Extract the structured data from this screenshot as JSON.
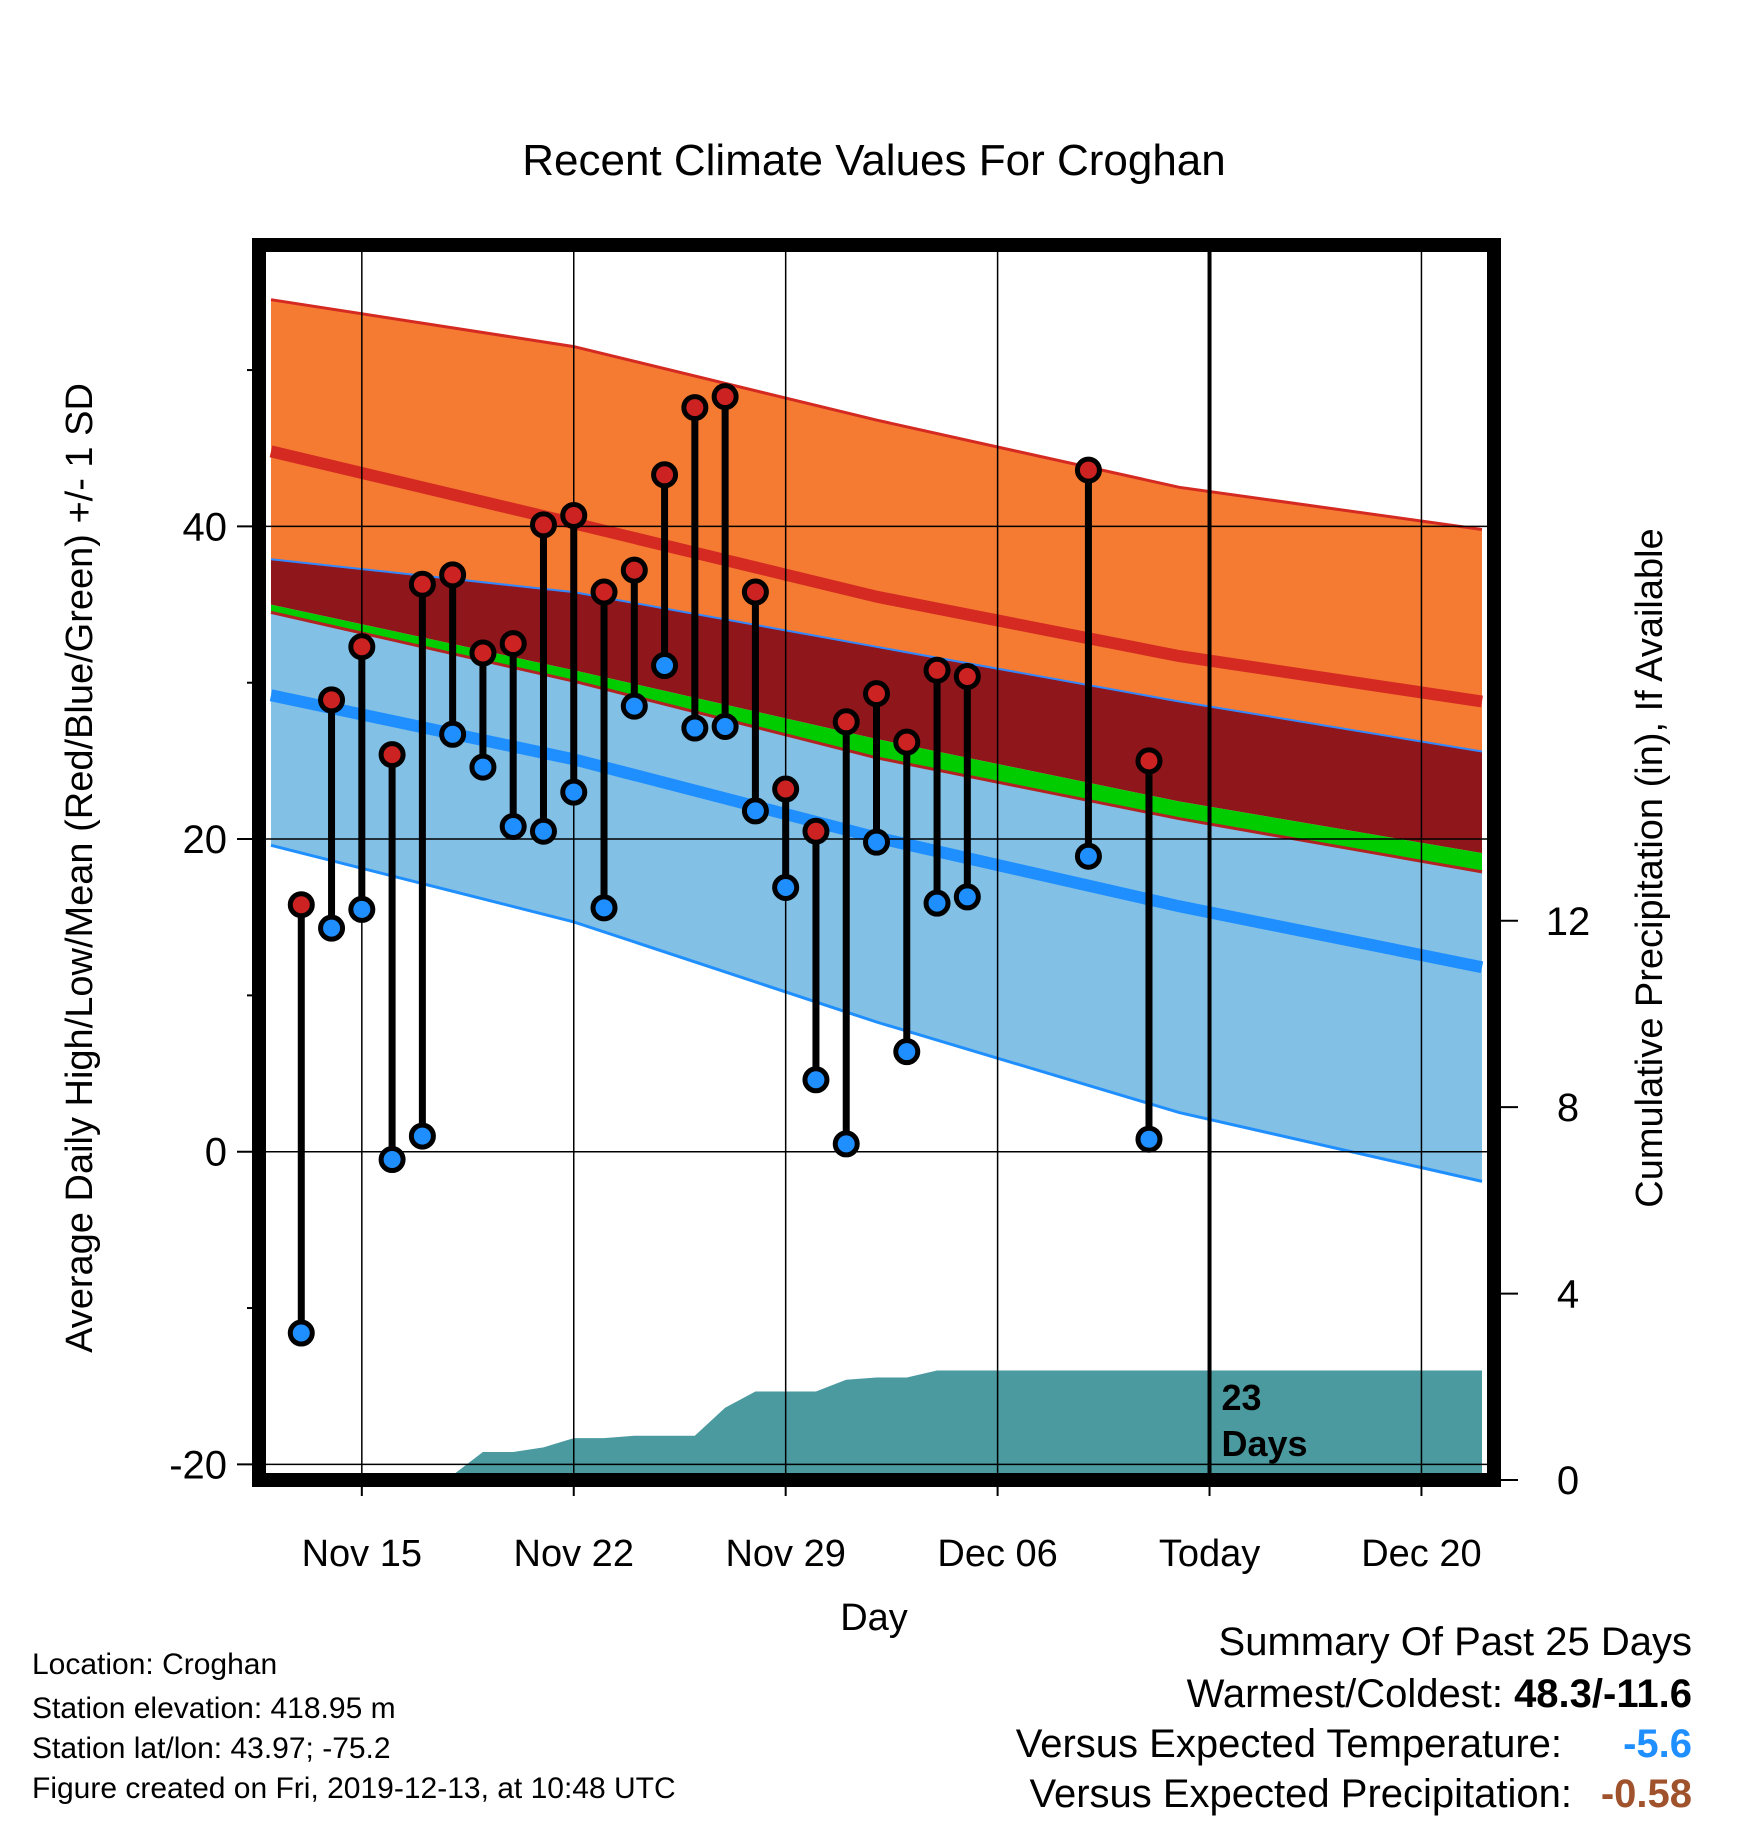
{
  "chart_data": {
    "type": "line",
    "title": "Recent Climate Values For Croghan",
    "xlabel": "Day",
    "ylabel": "Average Daily High/Low/Mean (Red/Blue/Green) +/- 1 SD",
    "y2label": "Cumulative Precipitation (in), If Available",
    "ylim": [
      -21,
      58
    ],
    "y2lim": [
      0,
      26.5
    ],
    "x_tick_labels": [
      "Nov 15",
      "Nov 22",
      "Nov 29",
      "Dec 06",
      "Today",
      "Dec 20"
    ],
    "y_tick_labels": [
      "-20",
      "0",
      "20",
      "40"
    ],
    "y2_tick_labels": [
      "0",
      "4",
      "8",
      "12"
    ],
    "today_annotation": [
      "23",
      "Days"
    ],
    "series": [
      {
        "name": "Observed High",
        "color": "#cc2222",
        "x": [
          "Nov 13",
          "Nov 14",
          "Nov 15",
          "Nov 16",
          "Nov 17",
          "Nov 18",
          "Nov 19",
          "Nov 20",
          "Nov 21",
          "Nov 22",
          "Nov 23",
          "Nov 24",
          "Nov 25",
          "Nov 26",
          "Nov 27",
          "Nov 28",
          "Nov 29",
          "Nov 30",
          "Dec 01",
          "Dec 02",
          "Dec 03",
          "Dec 04",
          "Dec 05",
          "Dec 09",
          "Dec 11"
        ],
        "values": [
          15.8,
          28.9,
          32.3,
          25.4,
          36.3,
          36.9,
          31.9,
          32.5,
          40.1,
          40.7,
          35.8,
          37.2,
          43.3,
          47.6,
          48.3,
          35.8,
          23.2,
          20.5,
          27.5,
          29.3,
          26.2,
          30.8,
          30.4,
          43.6,
          25.0
        ]
      },
      {
        "name": "Observed Low",
        "color": "#1f8fff",
        "x": [
          "Nov 13",
          "Nov 14",
          "Nov 15",
          "Nov 16",
          "Nov 17",
          "Nov 18",
          "Nov 19",
          "Nov 20",
          "Nov 21",
          "Nov 22",
          "Nov 23",
          "Nov 24",
          "Nov 25",
          "Nov 26",
          "Nov 27",
          "Nov 28",
          "Nov 29",
          "Nov 30",
          "Dec 01",
          "Dec 02",
          "Dec 03",
          "Dec 04",
          "Dec 05",
          "Dec 09",
          "Dec 11"
        ],
        "values": [
          -11.6,
          14.3,
          15.5,
          -0.5,
          1.0,
          26.7,
          24.6,
          20.8,
          20.5,
          23.0,
          15.6,
          28.5,
          31.1,
          27.1,
          27.2,
          21.8,
          16.9,
          4.6,
          0.5,
          19.8,
          6.4,
          15.9,
          16.3,
          18.9,
          0.8
        ]
      },
      {
        "name": "Normal High",
        "color": "#cc2222",
        "x": [
          "Nov 12",
          "Nov 22",
          "Dec 02",
          "Dec 12",
          "Dec 22"
        ],
        "values": [
          44.8,
          40.2,
          35.5,
          31.7,
          28.8
        ]
      },
      {
        "name": "Normal High +1 SD",
        "color": "#cc2222",
        "x": [
          "Nov 12",
          "Nov 22",
          "Dec 02",
          "Dec 12",
          "Dec 22"
        ],
        "values": [
          54.5,
          51.5,
          46.8,
          42.5,
          39.8
        ]
      },
      {
        "name": "Normal High -1 SD",
        "color": "#3388ff",
        "x": [
          "Nov 12",
          "Nov 22",
          "Dec 02",
          "Dec 12",
          "Dec 22"
        ],
        "values": [
          37.9,
          35.8,
          32.3,
          28.8,
          25.6
        ]
      },
      {
        "name": "Normal Mean",
        "color": "#00cc00",
        "x": [
          "Nov 12",
          "Nov 22",
          "Dec 02",
          "Dec 12",
          "Dec 22"
        ],
        "values": [
          35.0,
          30.8,
          26.4,
          22.4,
          19.1
        ]
      },
      {
        "name": "Normal Low +1 SD",
        "color": "#3388ff",
        "x": [
          "Nov 12",
          "Nov 22",
          "Dec 02",
          "Dec 12",
          "Dec 22"
        ],
        "values": [
          34.5,
          30.1,
          25.2,
          21.3,
          17.9
        ]
      },
      {
        "name": "Normal Low",
        "color": "#1f8fff",
        "x": [
          "Nov 12",
          "Nov 22",
          "Dec 02",
          "Dec 12",
          "Dec 22"
        ],
        "values": [
          29.2,
          25.1,
          20.1,
          15.7,
          11.8
        ]
      },
      {
        "name": "Normal Low -1 SD",
        "color": "#1f8fff",
        "x": [
          "Nov 12",
          "Nov 22",
          "Dec 02",
          "Dec 12",
          "Dec 22"
        ],
        "values": [
          19.6,
          14.7,
          8.3,
          2.5,
          -1.9
        ]
      },
      {
        "name": "Cumulative Precipitation",
        "color": "#4a9aa0",
        "x": [
          "Nov 12",
          "Nov 17",
          "Nov 18",
          "Nov 19",
          "Nov 20",
          "Nov 21",
          "Nov 22",
          "Nov 23",
          "Nov 24",
          "Nov 25",
          "Nov 26",
          "Nov 27",
          "Nov 28",
          "Nov 29",
          "Nov 30",
          "Dec 01",
          "Dec 02",
          "Dec 03",
          "Dec 04",
          "Dec 22"
        ],
        "values": [
          0,
          0,
          0.1,
          0.6,
          0.6,
          0.7,
          0.9,
          0.9,
          0.95,
          0.95,
          0.95,
          1.55,
          1.9,
          1.9,
          1.9,
          2.15,
          2.2,
          2.2,
          2.35,
          2.35
        ]
      }
    ]
  },
  "footer": {
    "location": "Location: Croghan",
    "elevation": "Station elevation: 418.95 m",
    "latlon": "Station lat/lon: 43.97; -75.2",
    "created": "Figure created on Fri, 2019-12-13, at 10:48 UTC"
  },
  "summary": {
    "heading": "Summary Of Past 25 Days",
    "warmest_label": "Warmest/Coldest:",
    "warmest_value": "48.3/-11.6",
    "temp_label": "Versus Expected Temperature:",
    "temp_value": "-5.6",
    "temp_color": "#1f8fff",
    "precip_label": "Versus Expected Precipitation:",
    "precip_value": "-0.58",
    "precip_color": "#a0522d"
  }
}
